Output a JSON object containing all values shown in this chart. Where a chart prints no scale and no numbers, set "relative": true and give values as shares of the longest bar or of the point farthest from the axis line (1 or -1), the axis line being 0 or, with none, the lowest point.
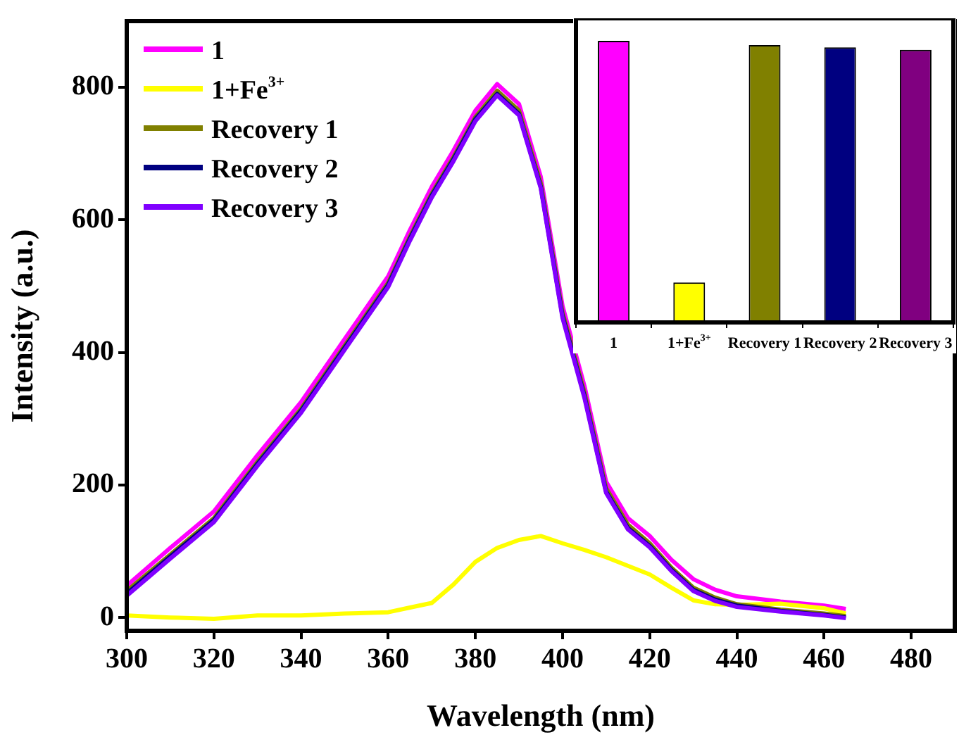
{
  "chart_data": [
    {
      "type": "line",
      "xlabel": "Wavelength (nm)",
      "ylabel": "Intensity (a.u.)",
      "xlim": [
        300,
        490
      ],
      "xticks": [
        300,
        320,
        340,
        360,
        380,
        400,
        420,
        440,
        460,
        480
      ],
      "ylim": [
        -20,
        900
      ],
      "yticks": [
        0,
        200,
        400,
        600,
        800
      ],
      "grid": false,
      "legend": "top left",
      "marker": "none",
      "line_style": "solid",
      "x": [
        300,
        310,
        320,
        330,
        340,
        350,
        360,
        365,
        370,
        375,
        380,
        385,
        390,
        395,
        400,
        405,
        410,
        415,
        420,
        425,
        430,
        435,
        440,
        450,
        460,
        465
      ],
      "series": [
        {
          "name": "1",
          "color": "#ff00ff",
          "values": [
            48,
            105,
            160,
            245,
            325,
            420,
            515,
            585,
            650,
            705,
            765,
            805,
            775,
            665,
            470,
            350,
            205,
            150,
            123,
            87,
            58,
            42,
            32,
            24,
            18,
            13
          ]
        },
        {
          "name": "1+Fe$^{3+}$",
          "color": "#ffff00",
          "values": [
            3,
            0,
            -2,
            3,
            3,
            6,
            8,
            15,
            22,
            50,
            84,
            105,
            117,
            123,
            112,
            102,
            91,
            78,
            65,
            45,
            26,
            20,
            19,
            21,
            14,
            6
          ]
        },
        {
          "name": "Recovery 1",
          "color": "#808000",
          "values": [
            40,
            95,
            150,
            235,
            315,
            410,
            505,
            575,
            640,
            695,
            755,
            795,
            765,
            655,
            460,
            340,
            195,
            140,
            112,
            75,
            45,
            30,
            20,
            12,
            6,
            2
          ]
        },
        {
          "name": "Recovery 2",
          "color": "#000080",
          "values": [
            36,
            92,
            147,
            232,
            312,
            407,
            502,
            572,
            637,
            692,
            752,
            790,
            760,
            650,
            455,
            335,
            190,
            135,
            108,
            72,
            42,
            27,
            18,
            10,
            4,
            0
          ]
        },
        {
          "name": "Recovery 3",
          "color": "#8000ff",
          "values": [
            33,
            89,
            144,
            229,
            309,
            404,
            499,
            569,
            634,
            689,
            749,
            788,
            758,
            648,
            452,
            332,
            188,
            133,
            106,
            70,
            40,
            25,
            16,
            9,
            3,
            -1
          ]
        }
      ]
    },
    {
      "type": "bar",
      "relative": true,
      "categories": [
        "1",
        "1+Fe$^{3+}$",
        "Recovery 1",
        "Recovery 2",
        "Recovery 3"
      ],
      "values": [
        1,
        0.142,
        0.985,
        0.977,
        0.968
      ],
      "colors": [
        "#ff00ff",
        "#ffff00",
        "#808000",
        "#000080",
        "#800080"
      ]
    }
  ]
}
